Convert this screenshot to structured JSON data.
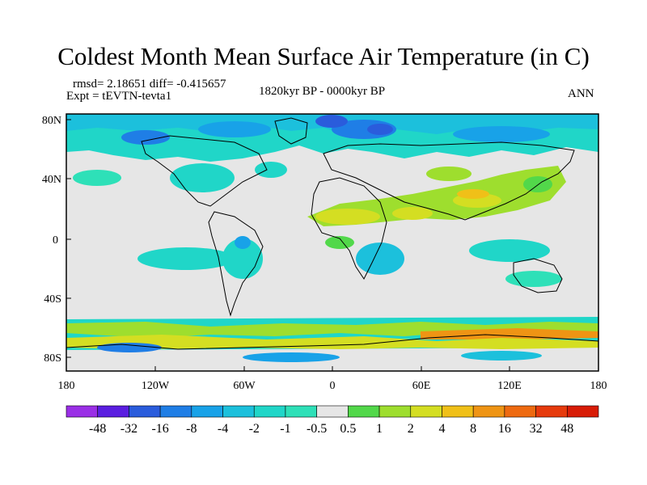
{
  "title": "Coldest Month Mean Surface Air Temperature (in C)",
  "stats": {
    "text": "rmsd= 2.18651 diff= -0.415657"
  },
  "experiment": "Expt = tEVTN-tevta1",
  "period": "1820kyr BP - 0000kyr BP",
  "season": "ANN",
  "map": {
    "projection": "cylindrical-equidistant",
    "lat_labels": [
      "80N",
      "40N",
      "0",
      "40S",
      "80S"
    ],
    "lat_values": [
      80,
      40,
      0,
      -40,
      -80
    ],
    "lon_labels": [
      "180",
      "120W",
      "60W",
      "0",
      "60E",
      "120E",
      "180"
    ],
    "lon_values": [
      -180,
      -120,
      -60,
      0,
      60,
      120,
      180
    ],
    "background_color": "#e6e6e6"
  },
  "colorbar": {
    "labels": [
      "-48",
      "-32",
      "-16",
      "-8",
      "-4",
      "-2",
      "-1",
      "-0.5",
      "0.5",
      "1",
      "2",
      "4",
      "8",
      "16",
      "32",
      "48"
    ],
    "colors": [
      "#9a2fe6",
      "#5a1ee0",
      "#2a5cdc",
      "#1f7ee6",
      "#18a2e8",
      "#1cc0dc",
      "#20d6c8",
      "#2ee0b8",
      "#e6e6e6",
      "#52d84a",
      "#9ede2e",
      "#d4de22",
      "#f0c018",
      "#ef9414",
      "#ee6a10",
      "#e63a0c",
      "#d81c06"
    ]
  }
}
